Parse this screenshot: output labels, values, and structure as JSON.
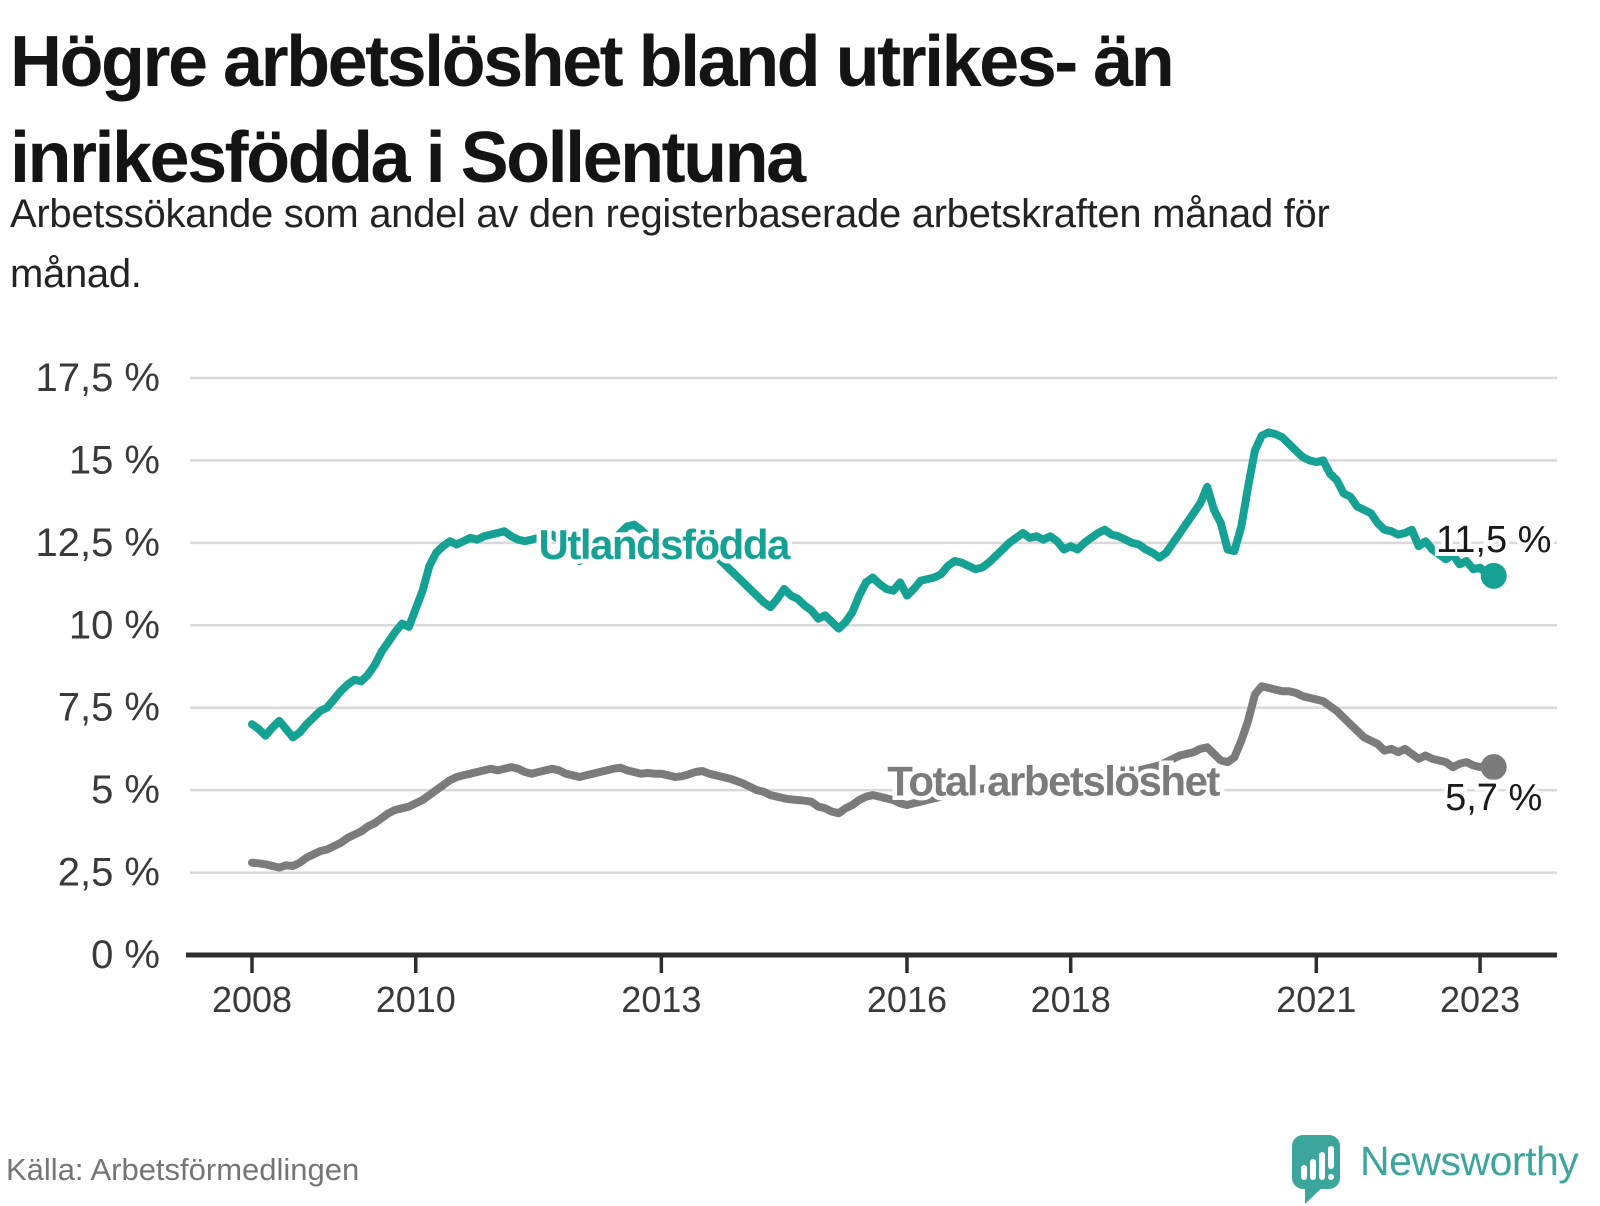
{
  "header": {
    "title": "Högre arbetslöshet bland utrikes- än inrikesfödda i Sollentuna",
    "subtitle": "Arbetssökande som andel av den registerbaserade arbetskraften månad för månad."
  },
  "footer": {
    "source": "Källa: Arbetsförmedlingen",
    "brand_name": "Newsworthy",
    "logo_icon": "newsworthy-bar-chart-speech-bubble-icon"
  },
  "colors": {
    "series_foreign_born": "#16a195",
    "series_total": "#7b7b7b",
    "grid": "#d9d9d9",
    "axis": "#2e2e2e",
    "tick_label": "#3a3a3a",
    "end_label_text": "#1a1a1a",
    "brand_teal": "#3ca69c",
    "background": "#ffffff"
  },
  "chart_data": {
    "type": "line",
    "title": "Högre arbetslöshet bland utrikes- än inrikesfödda i Sollentuna",
    "subtitle": "Arbetssökande som andel av den registerbaserade arbetskraften månad för månad.",
    "source": "Källa: Arbetsförmedlingen",
    "ylim": [
      0,
      17.5
    ],
    "xlim": [
      2007.2,
      2024.0
    ],
    "grid": "horizontal-only",
    "legend_position": "inline-series-labels",
    "y_ticks": [
      {
        "value": 0,
        "label": "0 %"
      },
      {
        "value": 2.5,
        "label": "2,5 %"
      },
      {
        "value": 5,
        "label": "5 %"
      },
      {
        "value": 7.5,
        "label": "7,5 %"
      },
      {
        "value": 10,
        "label": "10 %"
      },
      {
        "value": 12.5,
        "label": "12,5 %"
      },
      {
        "value": 15,
        "label": "15 %"
      },
      {
        "value": 17.5,
        "label": "17,5 %"
      }
    ],
    "x_ticks": [
      {
        "value": 2008,
        "label": "2008"
      },
      {
        "value": 2010,
        "label": "2010"
      },
      {
        "value": 2013,
        "label": "2013"
      },
      {
        "value": 2016,
        "label": "2016"
      },
      {
        "value": 2018,
        "label": "2018"
      },
      {
        "value": 2021,
        "label": "2021"
      },
      {
        "value": 2023,
        "label": "2023"
      }
    ],
    "series": [
      {
        "name": "Utlandsfödda",
        "color": "#16a195",
        "start_year": 2008,
        "points_per_year": 12,
        "end_label": "11,5 %",
        "end_value": 11.5,
        "label_anchor": {
          "x": 2011.5,
          "y": 12.45
        },
        "values": [
          7.0,
          6.85,
          6.65,
          6.9,
          7.1,
          6.85,
          6.6,
          6.75,
          7.0,
          7.2,
          7.4,
          7.5,
          7.75,
          8.0,
          8.2,
          8.35,
          8.3,
          8.5,
          8.8,
          9.2,
          9.5,
          9.8,
          10.05,
          9.95,
          10.5,
          11.05,
          11.8,
          12.2,
          12.4,
          12.55,
          12.45,
          12.55,
          12.65,
          12.6,
          12.7,
          12.75,
          12.8,
          12.85,
          12.7,
          12.6,
          12.55,
          12.6,
          12.65,
          12.7,
          12.75,
          12.6,
          12.45,
          12.1,
          11.95,
          12.1,
          12.25,
          12.3,
          12.45,
          12.6,
          12.8,
          13.0,
          13.05,
          12.9,
          12.7,
          12.55,
          12.45,
          12.5,
          12.55,
          12.5,
          12.55,
          12.5,
          12.4,
          12.3,
          12.1,
          11.9,
          11.7,
          11.5,
          11.3,
          11.1,
          10.9,
          10.7,
          10.55,
          10.8,
          11.1,
          10.9,
          10.8,
          10.6,
          10.45,
          10.2,
          10.3,
          10.1,
          9.9,
          10.1,
          10.4,
          10.9,
          11.3,
          11.45,
          11.25,
          11.1,
          11.05,
          11.3,
          10.9,
          11.1,
          11.35,
          11.4,
          11.45,
          11.55,
          11.8,
          11.95,
          11.9,
          11.8,
          11.7,
          11.75,
          11.9,
          12.1,
          12.3,
          12.5,
          12.65,
          12.8,
          12.65,
          12.7,
          12.6,
          12.7,
          12.55,
          12.3,
          12.4,
          12.3,
          12.5,
          12.65,
          12.8,
          12.9,
          12.75,
          12.7,
          12.6,
          12.5,
          12.45,
          12.3,
          12.2,
          12.05,
          12.2,
          12.5,
          12.8,
          13.1,
          13.4,
          13.7,
          14.2,
          13.5,
          13.1,
          12.3,
          12.25,
          13.0,
          14.2,
          15.3,
          15.75,
          15.85,
          15.8,
          15.7,
          15.5,
          15.3,
          15.1,
          15.0,
          14.95,
          15.0,
          14.6,
          14.4,
          14.0,
          13.9,
          13.6,
          13.5,
          13.4,
          13.1,
          12.9,
          12.85,
          12.75,
          12.8,
          12.9,
          12.4,
          12.55,
          12.3,
          12.15,
          12.0,
          12.15,
          11.85,
          11.95,
          11.7,
          11.75,
          11.55,
          11.5
        ]
      },
      {
        "name": "Total arbetslöshet",
        "color": "#7b7b7b",
        "start_year": 2008,
        "points_per_year": 12,
        "end_label": "5,7 %",
        "end_value": 5.7,
        "label_anchor": {
          "x": 2015.76,
          "y": 5.28
        },
        "values": [
          2.8,
          2.78,
          2.75,
          2.7,
          2.65,
          2.72,
          2.7,
          2.8,
          2.95,
          3.05,
          3.15,
          3.2,
          3.3,
          3.4,
          3.55,
          3.65,
          3.75,
          3.9,
          4.0,
          4.15,
          4.3,
          4.4,
          4.45,
          4.5,
          4.6,
          4.7,
          4.85,
          5.0,
          5.15,
          5.3,
          5.4,
          5.45,
          5.5,
          5.55,
          5.6,
          5.65,
          5.6,
          5.65,
          5.7,
          5.65,
          5.55,
          5.5,
          5.55,
          5.6,
          5.65,
          5.6,
          5.5,
          5.45,
          5.4,
          5.45,
          5.5,
          5.55,
          5.6,
          5.65,
          5.68,
          5.6,
          5.55,
          5.5,
          5.52,
          5.5,
          5.5,
          5.45,
          5.4,
          5.42,
          5.48,
          5.55,
          5.58,
          5.5,
          5.45,
          5.4,
          5.35,
          5.28,
          5.2,
          5.1,
          5.0,
          4.95,
          4.85,
          4.8,
          4.75,
          4.72,
          4.7,
          4.68,
          4.65,
          4.5,
          4.45,
          4.35,
          4.3,
          4.45,
          4.55,
          4.7,
          4.8,
          4.85,
          4.8,
          4.75,
          4.7,
          4.6,
          4.55,
          4.6,
          4.65,
          4.7,
          4.75,
          4.8,
          4.85,
          4.9,
          4.95,
          5.0,
          5.0,
          5.05,
          5.05,
          5.1,
          5.15,
          5.2,
          5.25,
          5.3,
          5.3,
          5.35,
          5.3,
          5.35,
          5.3,
          5.3,
          5.3,
          5.35,
          5.4,
          5.45,
          5.5,
          5.5,
          5.55,
          5.5,
          5.55,
          5.6,
          5.6,
          5.65,
          5.7,
          5.75,
          5.85,
          5.95,
          6.05,
          6.1,
          6.15,
          6.25,
          6.3,
          6.1,
          5.9,
          5.85,
          6.0,
          6.5,
          7.1,
          7.9,
          8.15,
          8.1,
          8.05,
          8.0,
          8.0,
          7.95,
          7.85,
          7.8,
          7.75,
          7.7,
          7.55,
          7.4,
          7.2,
          7.0,
          6.8,
          6.6,
          6.5,
          6.4,
          6.2,
          6.25,
          6.15,
          6.25,
          6.1,
          5.95,
          6.05,
          5.95,
          5.9,
          5.85,
          5.7,
          5.8,
          5.85,
          5.75,
          5.7,
          5.75,
          5.7
        ]
      }
    ]
  }
}
